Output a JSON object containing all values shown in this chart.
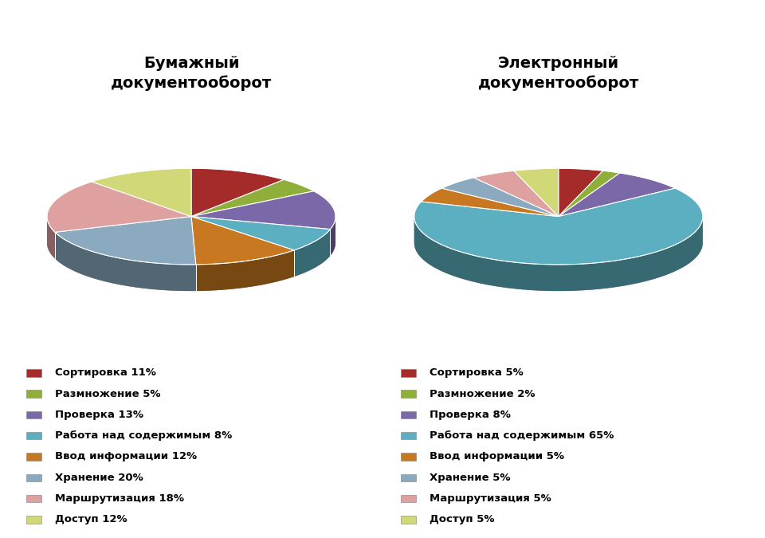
{
  "title1": "Бумажный\nдокументооборот",
  "title2": "Электронный\nдокументооборот",
  "labels": [
    "Сортировка",
    "Размножение",
    "Проверка",
    "Работа над содержимым",
    "Ввод информации",
    "Хранение",
    "Маршрутизация",
    "Доступ"
  ],
  "values1": [
    11,
    5,
    13,
    8,
    12,
    20,
    18,
    12
  ],
  "values2": [
    5,
    2,
    8,
    65,
    5,
    5,
    5,
    5
  ],
  "colors": [
    "#A52A2A",
    "#8FAF3A",
    "#7B68A8",
    "#5BAFC0",
    "#C87820",
    "#8BAABF",
    "#DFA0A0",
    "#D0D878"
  ],
  "legend_labels1": [
    "Сортировка 11%",
    "Размножение 5%",
    "Проверка 13%",
    "Работа над содержимым 8%",
    "Ввод информации 12%",
    "Хранение 20%",
    "Маршрутизация 18%",
    "Доступ 12%"
  ],
  "legend_labels2": [
    "Сортировка 5%",
    "Размножение 2%",
    "Проверка 8%",
    "Работа над содержимым 65%",
    "Ввод информации 5%",
    "Хранение 5%",
    "Маршрутизация 5%",
    "Доступ 5%"
  ]
}
